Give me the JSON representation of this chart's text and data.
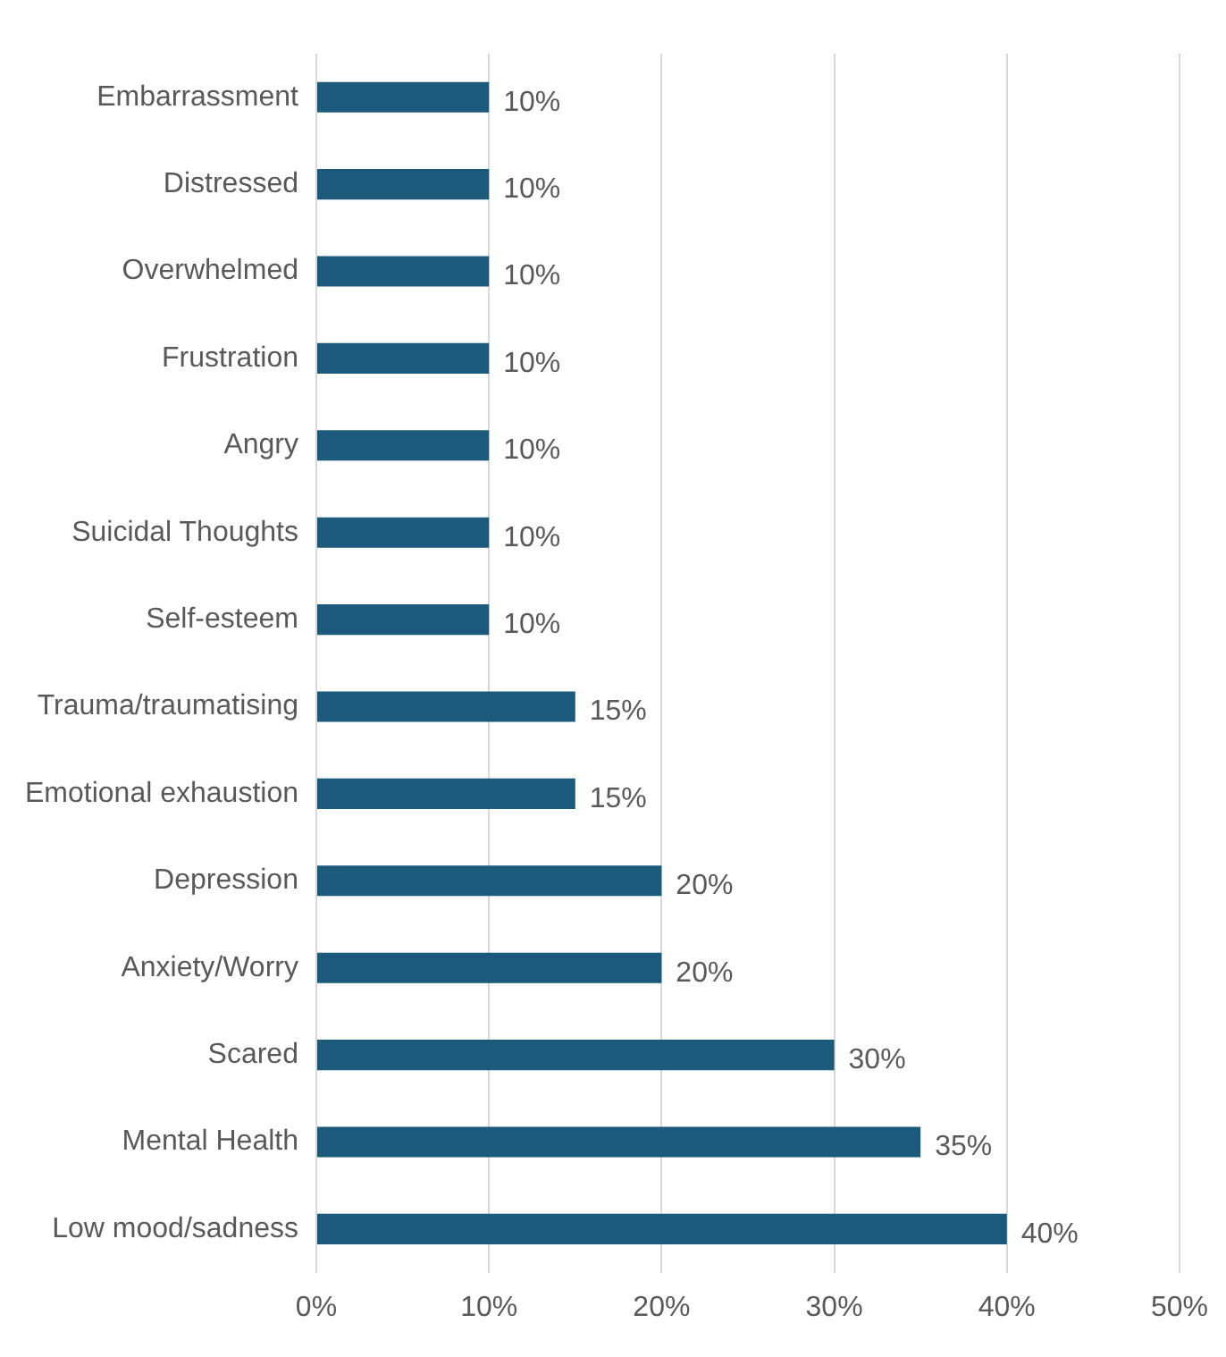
{
  "chart_data": {
    "type": "bar",
    "orientation": "horizontal",
    "categories": [
      "Embarrassment",
      "Distressed",
      "Overwhelmed",
      "Frustration",
      "Angry",
      "Suicidal Thoughts",
      "Self-esteem",
      "Trauma/traumatising",
      "Emotional exhaustion",
      "Depression",
      "Anxiety/Worry",
      "Scared",
      "Mental Health",
      "Low mood/sadness"
    ],
    "values": [
      10,
      10,
      10,
      10,
      10,
      10,
      10,
      15,
      15,
      20,
      20,
      30,
      35,
      40
    ],
    "value_labels": [
      "10%",
      "10%",
      "10%",
      "10%",
      "10%",
      "10%",
      "10%",
      "15%",
      "15%",
      "20%",
      "20%",
      "30%",
      "35%",
      "40%"
    ],
    "color": "#1b5a7a",
    "xlim": [
      0,
      50
    ],
    "xticks": [
      {
        "value": 0,
        "label": "0%"
      },
      {
        "value": 10,
        "label": "10%"
      },
      {
        "value": 20,
        "label": "20%"
      },
      {
        "value": 30,
        "label": "30%"
      },
      {
        "value": 40,
        "label": "40%"
      },
      {
        "value": 50,
        "label": "50%"
      }
    ],
    "grid": "x",
    "legend": false
  }
}
